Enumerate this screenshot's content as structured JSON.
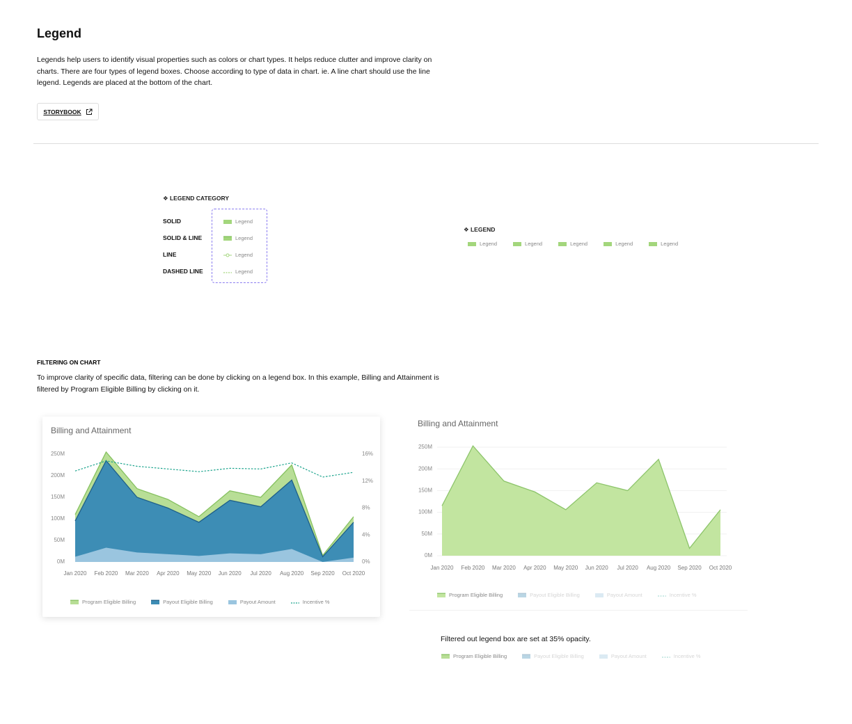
{
  "header": {
    "title": "Legend",
    "description": [
      "Legends help users to identify visual properties such as colors or chart types. It helps reduce clutter and improve clarity on",
      "charts. There are four types of legend boxes. Choose according to type of data in chart. ie. A line chart should use the line",
      "legend. Legends are placed at the bottom of the chart."
    ],
    "button": "STORYBOOK"
  },
  "legend_category": {
    "title": "❖ LEGEND CATEGORY",
    "rows": [
      {
        "type": "SOLID",
        "label": "Legend"
      },
      {
        "type": "SOLID & LINE",
        "label": "Legend"
      },
      {
        "type": "LINE",
        "label": "Legend"
      },
      {
        "type": "DASHED LINE",
        "label": "Legend"
      }
    ]
  },
  "legend": {
    "title": "❖ LEGEND",
    "items": [
      "Legend",
      "Legend",
      "Legend",
      "Legend",
      "Legend"
    ]
  },
  "filtering": {
    "title": "FILTERING ON CHART",
    "description": [
      "To improve clarity of specific data, filtering can be done by clicking on a legend box. In this example, Billing and Attainment is",
      "filtered by Program Eligible Billing by clicking on it."
    ]
  },
  "chart_data": [
    {
      "type": "area",
      "title": "Billing and Attainment",
      "categories": [
        "Jan 2020",
        "Feb 2020",
        "Mar 2020",
        "Apr 2020",
        "May 2020",
        "Jun 2020",
        "Jul 2020",
        "Aug 2020",
        "Sep 2020",
        "Oct 2020"
      ],
      "ylim": [
        0,
        250
      ],
      "yticks": [
        {
          "value": 0,
          "label": "0M"
        },
        {
          "value": 50,
          "label": "50M"
        },
        {
          "value": 100,
          "label": "100M"
        },
        {
          "value": 150,
          "label": "150M"
        },
        {
          "value": 200,
          "label": "200M"
        },
        {
          "value": 250,
          "label": "250M"
        }
      ],
      "y2lim": [
        0,
        16
      ],
      "y2ticks": [
        {
          "value": 0,
          "label": "0%"
        },
        {
          "value": 4,
          "label": "4%"
        },
        {
          "value": 8,
          "label": "8%"
        },
        {
          "value": 12,
          "label": "12%"
        },
        {
          "value": 16,
          "label": "16%"
        }
      ],
      "grid": false,
      "series": [
        {
          "name": "Program Eligible Billing",
          "style": "area",
          "color": "#b8de96",
          "line_color": "#86c160",
          "values": [
            110,
            255,
            170,
            145,
            105,
            165,
            150,
            225,
            15,
            105
          ]
        },
        {
          "name": "Payout Eligible Billing",
          "style": "area",
          "color": "#3d8db5",
          "line_color": "#1e5f8a",
          "values": [
            95,
            235,
            150,
            125,
            92,
            143,
            128,
            190,
            12,
            92
          ]
        },
        {
          "name": "Payout Amount",
          "style": "area",
          "color": "#9ac5df",
          "values": [
            12,
            33,
            22,
            18,
            14,
            20,
            18,
            30,
            0,
            10
          ]
        },
        {
          "name": "Incentive %",
          "style": "dashed_line",
          "color": "#1aa38c",
          "axis": "y2",
          "values": [
            13.5,
            15,
            14.2,
            13.8,
            13.4,
            13.9,
            13.8,
            14.7,
            12.6,
            13.3
          ]
        }
      ]
    },
    {
      "type": "area",
      "title": "Billing and Attainment",
      "categories": [
        "Jan 2020",
        "Feb 2020",
        "Mar 2020",
        "Apr 2020",
        "May 2020",
        "Jun 2020",
        "Jul 2020",
        "Aug 2020",
        "Sep 2020",
        "Oct 2020"
      ],
      "ylim": [
        0,
        250
      ],
      "yticks": [
        {
          "value": 0,
          "label": "0M"
        },
        {
          "value": 50,
          "label": "50M"
        },
        {
          "value": 100,
          "label": "100M"
        },
        {
          "value": 150,
          "label": "150M"
        },
        {
          "value": 200,
          "label": "200M"
        },
        {
          "value": 250,
          "label": "250M"
        }
      ],
      "grid": true,
      "filtered_opacity": 0.35,
      "series": [
        {
          "name": "Program Eligible Billing",
          "style": "area",
          "color": "#c2e5a0",
          "line_color": "#8cc46a",
          "values": [
            115,
            253,
            172,
            147,
            106,
            168,
            150,
            222,
            17,
            106
          ]
        },
        {
          "name": "Payout Eligible Billing",
          "style": "area",
          "color": "#3d8db5",
          "line_color": "#1e5f8a",
          "filtered": true
        },
        {
          "name": "Payout Amount",
          "style": "area",
          "color": "#9ac5df",
          "filtered": true
        },
        {
          "name": "Incentive %",
          "style": "dashed_line",
          "color": "#1aa38c",
          "filtered": true
        }
      ]
    }
  ],
  "filtered_legend": {
    "note": "Filtered out legend box are set at 35% opacity.",
    "filtered_opacity": 0.35,
    "items": [
      {
        "name": "Program Eligible Billing",
        "style": "area",
        "color": "#b8de96",
        "line_color": "#86c160",
        "filtered": false
      },
      {
        "name": "Payout Eligible Billing",
        "style": "area",
        "color": "#3d8db5",
        "line_color": "#1e5f8a",
        "filtered": true
      },
      {
        "name": "Payout Amount",
        "style": "area",
        "color": "#9ac5df",
        "filtered": true
      },
      {
        "name": "Incentive %",
        "style": "dashed_line",
        "color": "#1aa38c",
        "filtered": true
      }
    ]
  }
}
